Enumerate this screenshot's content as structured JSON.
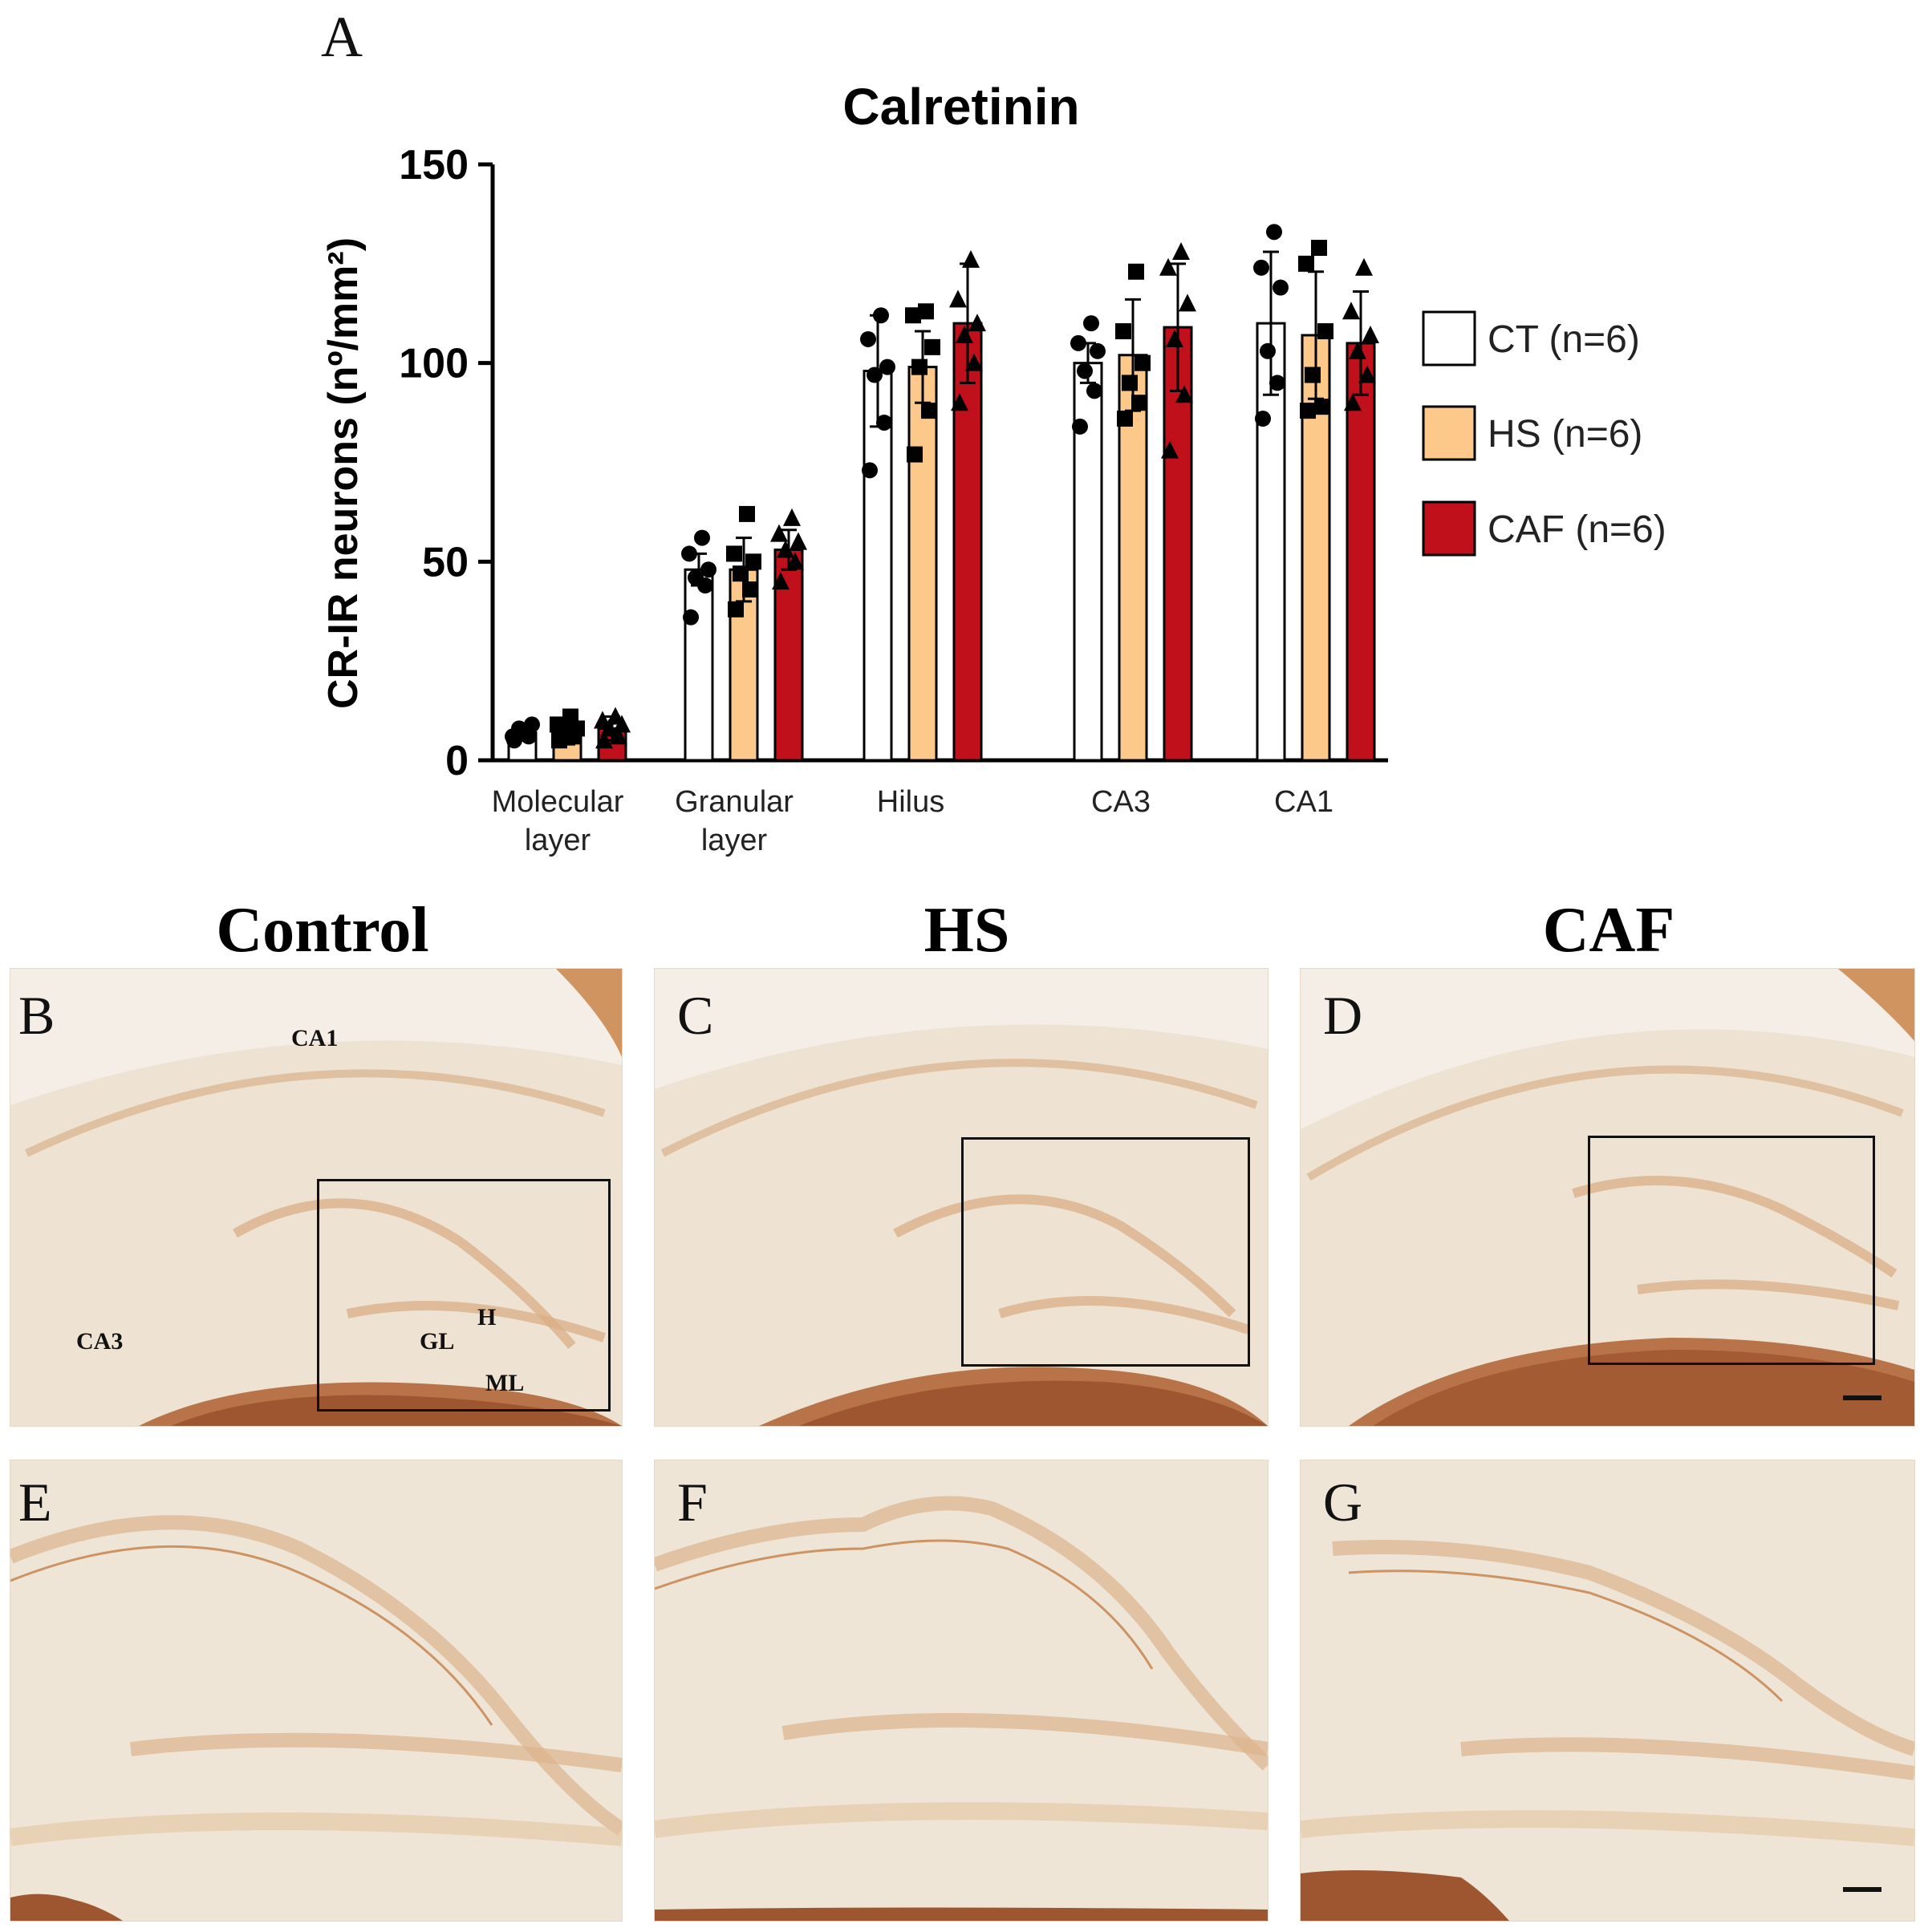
{
  "panel_a_letter": "A",
  "chart_data": {
    "type": "bar",
    "title": "Calretinin",
    "ylabel": "CR-IR neurons (nº/mm²)",
    "xlabel": "",
    "ylim": [
      0,
      150
    ],
    "yticks": [
      0,
      50,
      100,
      150
    ],
    "categories": [
      "Molecular layer",
      "Granular layer",
      "Hilus",
      "CA3",
      "CA1"
    ],
    "series": [
      {
        "name": "CT (n=6)",
        "color": "#ffffff",
        "marker": "circle",
        "values": [
          7,
          48,
          98,
          100,
          110
        ],
        "errors": [
          2,
          4,
          14,
          5,
          18
        ],
        "points": [
          [
            5,
            6,
            8,
            9,
            6,
            7
          ],
          [
            36,
            44,
            46,
            48,
            52,
            56
          ],
          [
            73,
            85,
            97,
            99,
            106,
            112
          ],
          [
            84,
            93,
            98,
            103,
            105,
            110
          ],
          [
            86,
            95,
            103,
            119,
            124,
            133
          ]
        ]
      },
      {
        "name": "HS (n=6)",
        "color": "#fcc98a",
        "marker": "square",
        "values": [
          7,
          48,
          99,
          102,
          107
        ],
        "errors": [
          3,
          8,
          9,
          14,
          16
        ],
        "points": [
          [
            5,
            6,
            7,
            8,
            9,
            11
          ],
          [
            38,
            43,
            47,
            50,
            52,
            62
          ],
          [
            77,
            88,
            99,
            104,
            112,
            113
          ],
          [
            86,
            90,
            95,
            100,
            108,
            123
          ],
          [
            88,
            89,
            97,
            108,
            125,
            129
          ]
        ]
      },
      {
        "name": "CAF (n=6)",
        "color": "#c0101c",
        "marker": "triangle",
        "values": [
          8,
          53,
          110,
          109,
          105
        ],
        "errors": [
          3,
          5,
          15,
          16,
          13
        ],
        "points": [
          [
            5,
            6,
            8,
            9,
            10,
            11
          ],
          [
            45,
            50,
            53,
            55,
            57,
            61
          ],
          [
            90,
            100,
            107,
            110,
            116,
            126
          ],
          [
            78,
            92,
            106,
            115,
            124,
            128
          ],
          [
            90,
            97,
            103,
            107,
            113,
            124
          ]
        ]
      }
    ]
  },
  "column_titles": [
    "Control",
    "HS",
    "CAF"
  ],
  "panel_letters": {
    "b": "B",
    "c": "C",
    "d": "D",
    "e": "E",
    "f": "F",
    "g": "G"
  },
  "region_labels": {
    "ca1": "CA1",
    "ca3": "CA3",
    "h": "H",
    "gl": "GL",
    "ml": "ML"
  },
  "colors": {
    "tissue_bg": "#ede0cd",
    "tissue_light": "#f5ede2",
    "stain": "#b8672f",
    "stain_dark": "#8a3a1a",
    "neuron": "#9a3218"
  }
}
